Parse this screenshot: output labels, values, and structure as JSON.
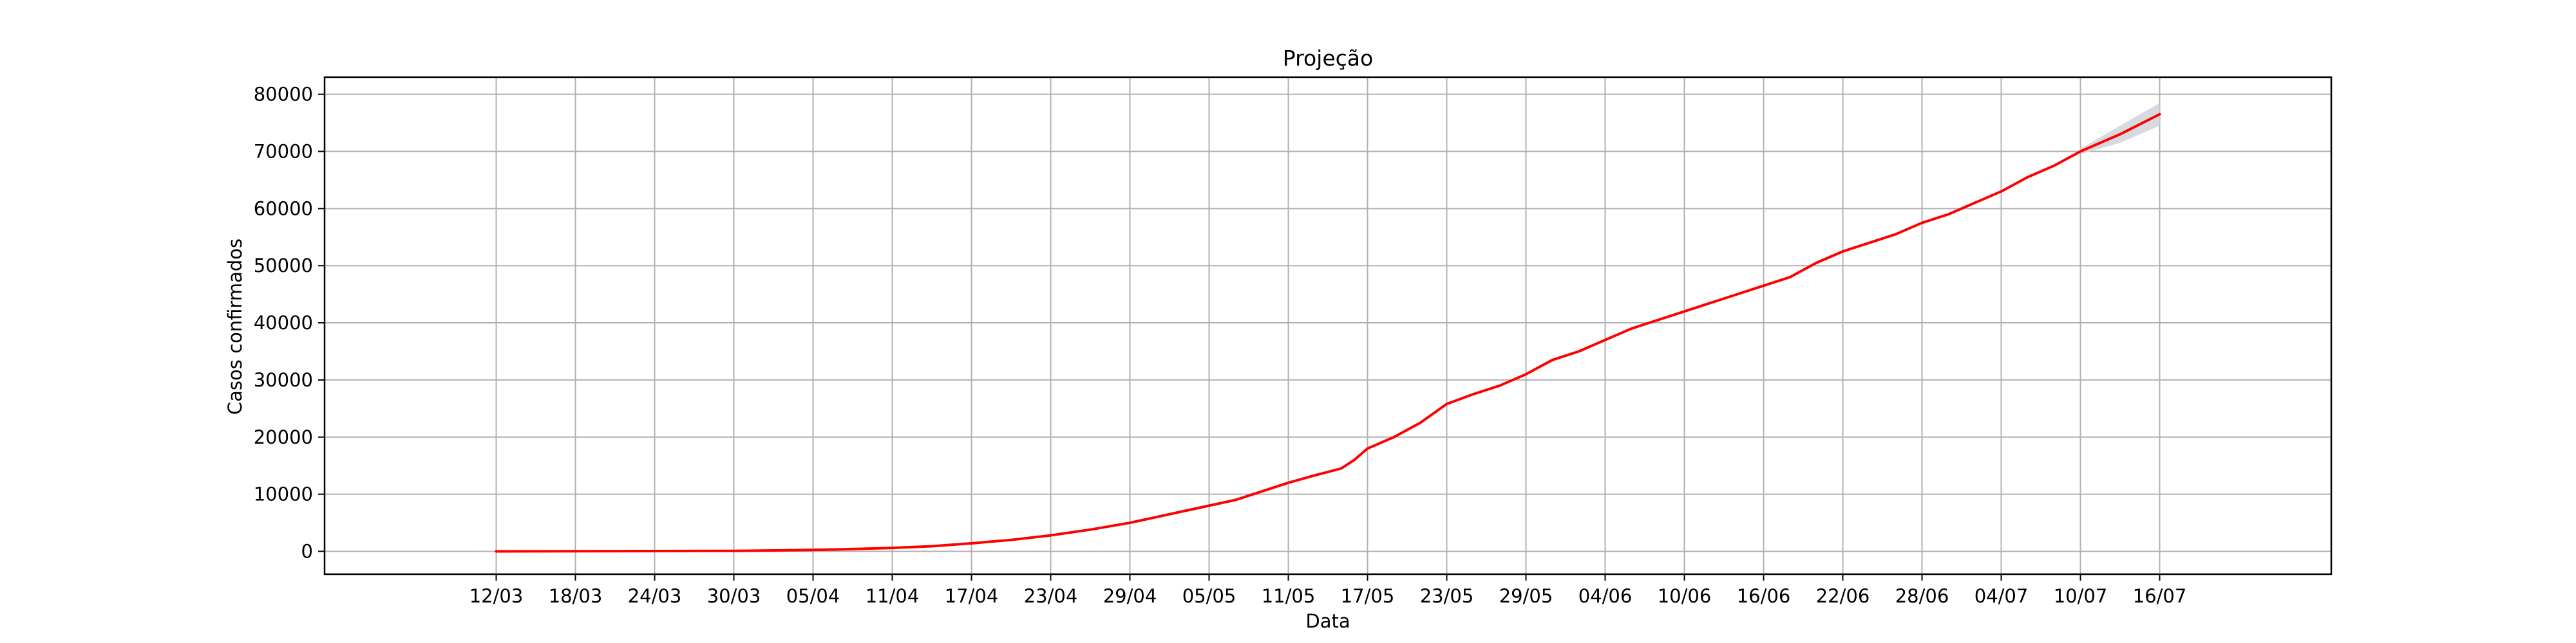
{
  "chart_data": {
    "type": "line",
    "title": "Projeção",
    "xlabel": "Data",
    "ylabel": "Casos confirmados",
    "grid": true,
    "legend": "none",
    "x_tick_labels": [
      "12/03",
      "18/03",
      "24/03",
      "30/03",
      "05/04",
      "11/04",
      "17/04",
      "23/04",
      "29/04",
      "05/05",
      "11/05",
      "17/05",
      "23/05",
      "29/05",
      "04/06",
      "10/06",
      "16/06",
      "22/06",
      "28/06",
      "04/07",
      "10/07",
      "16/07"
    ],
    "xlim": [
      "2020-02-28",
      "2020-07-29"
    ],
    "y_ticks": [
      0,
      10000,
      20000,
      30000,
      40000,
      50000,
      60000,
      70000,
      80000
    ],
    "y_tick_labels": [
      "0",
      "10000",
      "20000",
      "30000",
      "40000",
      "50000",
      "60000",
      "70000",
      "80000"
    ],
    "ylim": [
      -4000,
      83000
    ],
    "colors": {
      "line": "#ff0000",
      "band": "#d3d6db",
      "grid": "#b0b0b0"
    },
    "series": [
      {
        "values": [
          [
            "2020-03-12",
            0
          ],
          [
            "2020-03-30",
            80
          ],
          [
            "2020-04-05",
            250
          ],
          [
            "2020-04-08",
            400
          ],
          [
            "2020-04-11",
            600
          ],
          [
            "2020-04-14",
            900
          ],
          [
            "2020-04-17",
            1400
          ],
          [
            "2020-04-20",
            2000
          ],
          [
            "2020-04-23",
            2800
          ],
          [
            "2020-04-26",
            3800
          ],
          [
            "2020-04-29",
            5000
          ],
          [
            "2020-05-01",
            6000
          ],
          [
            "2020-05-03",
            7000
          ],
          [
            "2020-05-05",
            8000
          ],
          [
            "2020-05-07",
            9000
          ],
          [
            "2020-05-09",
            10500
          ],
          [
            "2020-05-11",
            12000
          ],
          [
            "2020-05-13",
            13300
          ],
          [
            "2020-05-15",
            14500
          ],
          [
            "2020-05-16",
            16000
          ],
          [
            "2020-05-17",
            18000
          ],
          [
            "2020-05-19",
            20000
          ],
          [
            "2020-05-21",
            22500
          ],
          [
            "2020-05-23",
            25800
          ],
          [
            "2020-05-25",
            27500
          ],
          [
            "2020-05-27",
            29000
          ],
          [
            "2020-05-29",
            31000
          ],
          [
            "2020-05-31",
            33500
          ],
          [
            "2020-06-02",
            35000
          ],
          [
            "2020-06-04",
            37000
          ],
          [
            "2020-06-06",
            39000
          ],
          [
            "2020-06-08",
            40500
          ],
          [
            "2020-06-10",
            42000
          ],
          [
            "2020-06-12",
            43500
          ],
          [
            "2020-06-14",
            45000
          ],
          [
            "2020-06-16",
            46500
          ],
          [
            "2020-06-18",
            48000
          ],
          [
            "2020-06-20",
            50500
          ],
          [
            "2020-06-22",
            52500
          ],
          [
            "2020-06-24",
            54000
          ],
          [
            "2020-06-26",
            55500
          ],
          [
            "2020-06-28",
            57500
          ],
          [
            "2020-06-30",
            59000
          ],
          [
            "2020-07-02",
            61000
          ],
          [
            "2020-07-04",
            63000
          ],
          [
            "2020-07-06",
            65500
          ],
          [
            "2020-07-08",
            67500
          ],
          [
            "2020-07-10",
            70000
          ],
          [
            "2020-07-13",
            73000
          ],
          [
            "2020-07-16",
            76500
          ]
        ]
      }
    ],
    "confidence_band": {
      "x": [
        "2020-07-10",
        "2020-07-13",
        "2020-07-16"
      ],
      "lower": [
        69500,
        71500,
        74500
      ],
      "upper": [
        70500,
        74500,
        78500
      ]
    }
  }
}
